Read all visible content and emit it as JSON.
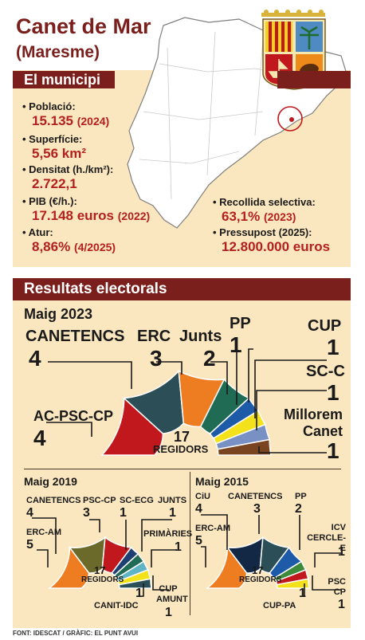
{
  "title": "Canet de Mar",
  "subtitle": "(Maresme)",
  "municipi": {
    "heading": "El municipi",
    "stats_left": [
      {
        "label": "• Població:",
        "value": "15.135",
        "extra": "(2024)"
      },
      {
        "label": "• Superfície:",
        "value": "5,56 km²",
        "extra": ""
      },
      {
        "label": "• Densitat (h./km²):",
        "value": "2.722,1",
        "extra": ""
      },
      {
        "label": "• PIB (€/h.):",
        "value": "17.148 euros",
        "extra": "(2022)"
      },
      {
        "label": "• Atur:",
        "value": "8,86%",
        "extra": "(4/2025)"
      }
    ],
    "stats_right": [
      {
        "label": "• Recollida selectiva:",
        "value": "63,1%",
        "extra": "(2023)"
      },
      {
        "label": "• Pressupost (2025):",
        "value": "12.800.000 euros",
        "extra": ""
      }
    ]
  },
  "results": {
    "heading": "Resultats electorals",
    "total_num": "17",
    "total_label": "REGIDORS",
    "e2023": {
      "title": "Maig 2023",
      "parties": [
        {
          "name": "AC-PSC-CP",
          "seats": "4",
          "color": "#c0181c"
        },
        {
          "name": "CANETENCS",
          "seats": "4",
          "color": "#2c4e56"
        },
        {
          "name": "ERC",
          "seats": "3",
          "color": "#ee7d22"
        },
        {
          "name": "Junts",
          "seats": "2",
          "color": "#1f6b53"
        },
        {
          "name": "PP",
          "seats": "1",
          "color": "#1d5aa8"
        },
        {
          "name": "CUP",
          "seats": "1",
          "color": "#f3e11a"
        },
        {
          "name": "SC-C",
          "seats": "1",
          "color": "#7890c3"
        },
        {
          "name": "Millorem Canet",
          "seats": "1",
          "color": "#7a4420"
        }
      ]
    },
    "e2019": {
      "title": "Maig 2019",
      "parties": [
        {
          "name": "ERC-AM",
          "seats": "5",
          "color": "#ee7d22"
        },
        {
          "name": "CANETENCS",
          "seats": "4",
          "color": "#6b6a2b"
        },
        {
          "name": "PSC-CP",
          "seats": "3",
          "color": "#c0181c"
        },
        {
          "name": "SC-ECG",
          "seats": "1",
          "color": "#1d3f72"
        },
        {
          "name": "JUNTS",
          "seats": "1",
          "color": "#1f6b53"
        },
        {
          "name": "PRIMÀRIES",
          "seats": "1",
          "color": "#5fb4c4"
        },
        {
          "name": "CUP AMUNT",
          "seats": "1",
          "color": "#f3e11a"
        },
        {
          "name": "CANIT-IDC",
          "seats": "1",
          "color": "#2c4e56"
        }
      ]
    },
    "e2015": {
      "title": "Maig 2015",
      "parties": [
        {
          "name": "ERC-AM",
          "seats": "5",
          "color": "#ee7d22"
        },
        {
          "name": "CiU",
          "seats": "4",
          "color": "#132845"
        },
        {
          "name": "CANETENCS",
          "seats": "3",
          "color": "#2c4e56"
        },
        {
          "name": "PP",
          "seats": "2",
          "color": "#1d5aa8"
        },
        {
          "name": "ICV CERCLE-E",
          "seats": "1",
          "color": "#3c8a3a"
        },
        {
          "name": "PSC CP",
          "seats": "1",
          "color": "#c0181c"
        },
        {
          "name": "CUP-PA",
          "seats": "1",
          "color": "#f3e11a"
        }
      ]
    }
  },
  "source": "FONT: IDESCAT / GRÀFIC: EL PUNT AVUI"
}
